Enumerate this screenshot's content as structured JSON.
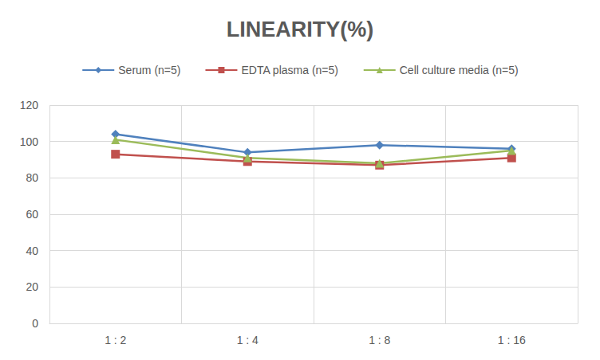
{
  "chart_data": {
    "type": "line",
    "title": "LINEARITY(%)",
    "categories": [
      "1 : 2",
      "1 : 4",
      "1 : 8",
      "1 : 16"
    ],
    "series": [
      {
        "name": "Serum (n=5)",
        "color": "#4f81bd",
        "marker": "diamond",
        "values": [
          104,
          94,
          98,
          96
        ]
      },
      {
        "name": "EDTA plasma (n=5)",
        "color": "#c0504d",
        "marker": "square",
        "values": [
          93,
          89,
          87,
          91
        ]
      },
      {
        "name": "Cell culture media (n=5)",
        "color": "#9bbb59",
        "marker": "triangle",
        "values": [
          101,
          91,
          88,
          95
        ]
      }
    ],
    "ylim": [
      0,
      120
    ],
    "yticks": [
      0,
      20,
      40,
      60,
      80,
      100,
      120
    ],
    "grid": true,
    "legend": "top"
  }
}
